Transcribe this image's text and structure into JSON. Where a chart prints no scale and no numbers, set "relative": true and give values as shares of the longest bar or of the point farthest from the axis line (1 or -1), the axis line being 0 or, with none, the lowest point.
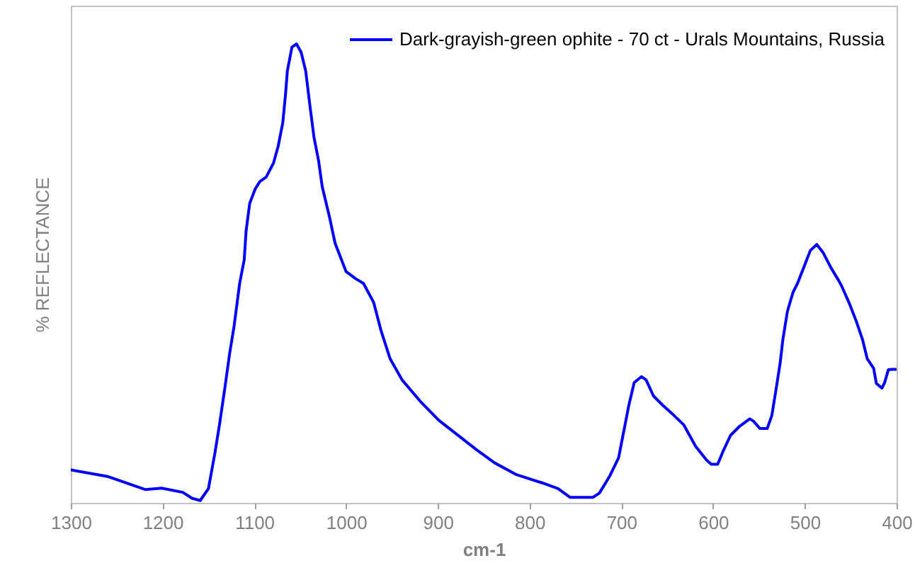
{
  "chart_data": {
    "type": "line",
    "xlabel": "cm-1",
    "ylabel": "% REFLECTANCE",
    "relative": true,
    "legend": "top right",
    "xlim": [
      1300,
      400
    ],
    "xticks": [
      1300,
      1200,
      1100,
      1000,
      900,
      800,
      700,
      600,
      500,
      400
    ],
    "x": [
      1300,
      1259,
      1229,
      1219,
      1201,
      1178,
      1168,
      1159,
      1150,
      1143,
      1138,
      1132,
      1127,
      1122,
      1116,
      1111,
      1109,
      1105,
      1099,
      1094,
      1087,
      1079,
      1074,
      1069,
      1066,
      1064,
      1059,
      1054,
      1049,
      1044,
      1039,
      1035,
      1030,
      1026,
      1018,
      1012,
      1000,
      990,
      981,
      970,
      962,
      952,
      939,
      919,
      899,
      876,
      858,
      838,
      815,
      787,
      769,
      756,
      731,
      724,
      713,
      703,
      698,
      692,
      686,
      678,
      673,
      665,
      655,
      645,
      632,
      619,
      607,
      602,
      595,
      589,
      581,
      571,
      560,
      556,
      549,
      541,
      536,
      531,
      527,
      524,
      519,
      513,
      508,
      500,
      494,
      487,
      480,
      472,
      463,
      460,
      452,
      444,
      437,
      432,
      425,
      422,
      416,
      413,
      409,
      405,
      400
    ],
    "series": [
      {
        "name": "Dark-grayish-green ophite - 70 ct - Urals Mountains, Russia",
        "color": "#0000ff",
        "values": [
          0.072,
          0.057,
          0.036,
          0.029,
          0.032,
          0.023,
          0.01,
          0.005,
          0.031,
          0.108,
          0.17,
          0.252,
          0.324,
          0.386,
          0.478,
          0.53,
          0.592,
          0.653,
          0.684,
          0.7,
          0.71,
          0.741,
          0.777,
          0.828,
          0.89,
          0.941,
          0.993,
          1.0,
          0.982,
          0.941,
          0.859,
          0.797,
          0.746,
          0.689,
          0.622,
          0.566,
          0.504,
          0.489,
          0.478,
          0.437,
          0.376,
          0.314,
          0.268,
          0.221,
          0.18,
          0.144,
          0.116,
          0.087,
          0.062,
          0.044,
          0.031,
          0.012,
          0.012,
          0.021,
          0.057,
          0.098,
          0.149,
          0.211,
          0.262,
          0.275,
          0.268,
          0.233,
          0.213,
          0.195,
          0.17,
          0.123,
          0.093,
          0.084,
          0.084,
          0.113,
          0.147,
          0.167,
          0.183,
          0.178,
          0.162,
          0.162,
          0.19,
          0.252,
          0.303,
          0.355,
          0.417,
          0.458,
          0.478,
          0.519,
          0.55,
          0.563,
          0.545,
          0.514,
          0.484,
          0.473,
          0.437,
          0.396,
          0.355,
          0.314,
          0.293,
          0.26,
          0.25,
          0.262,
          0.29,
          0.291,
          0.291
        ]
      }
    ]
  }
}
